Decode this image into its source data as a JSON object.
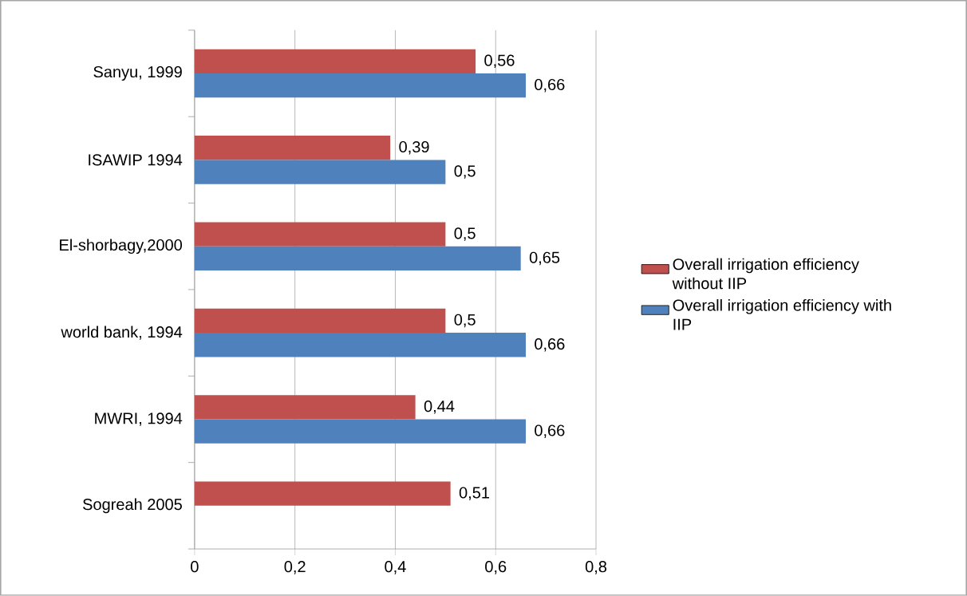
{
  "chart_data": {
    "type": "bar",
    "orientation": "horizontal",
    "categories": [
      "Sanyu, 1999",
      "ISAWIP 1994",
      "El-shorbagy,2000",
      "world bank, 1994",
      "MWRI, 1994",
      "Sogreah 2005"
    ],
    "series": [
      {
        "name": "Overall irrigation efficiency without IIP",
        "color": "#c0504d",
        "values": [
          0.56,
          0.39,
          0.5,
          0.5,
          0.44,
          0.51
        ],
        "value_labels": [
          "0,56",
          "0,39",
          "0,5",
          "0,5",
          "0,44",
          "0,51"
        ]
      },
      {
        "name": "Overall irrigation efficiency with IIP",
        "color": "#4f81bd",
        "values": [
          0.66,
          0.5,
          0.65,
          0.66,
          0.66,
          null
        ],
        "value_labels": [
          "0,66",
          "0,5",
          "0,65",
          "0,66",
          "0,66",
          null
        ]
      }
    ],
    "xlim": [
      0,
      0.8
    ],
    "xticks": [
      0,
      {
        "value": 0.2,
        "label": "0,2"
      },
      {
        "value": 0.4,
        "label": "0,4"
      },
      {
        "value": 0.6,
        "label": "0,6"
      },
      {
        "value": 0.8,
        "label": "0,8"
      }
    ],
    "grid": "x",
    "legend": "right"
  }
}
